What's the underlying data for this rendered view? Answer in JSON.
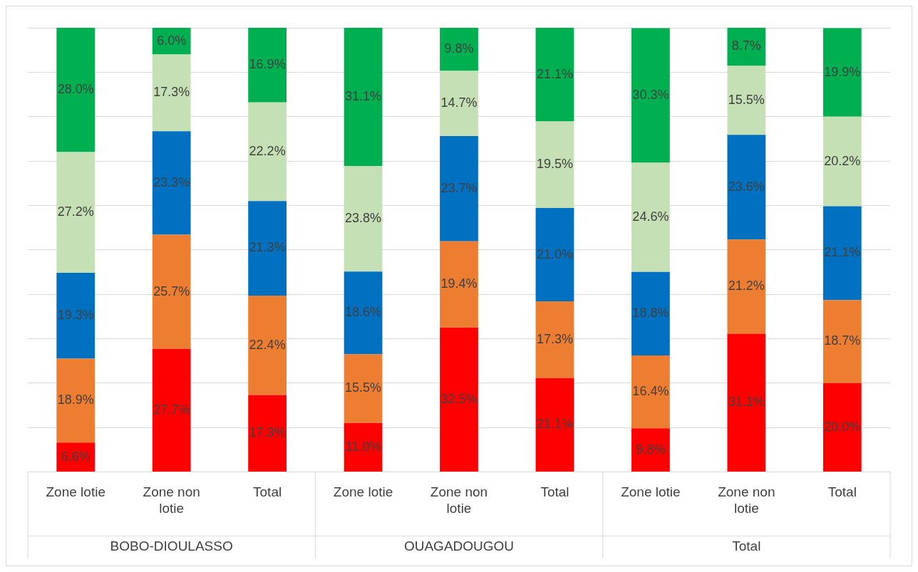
{
  "chart_data": {
    "type": "bar",
    "stacked": true,
    "categories": [
      "Zone lotie",
      "Zone non lotie",
      "Total",
      "Zone lotie",
      "Zone non lotie",
      "Total",
      "Zone lotie",
      "Zone non lotie",
      "Total"
    ],
    "annotations": [
      "BOBO-DIOULASSO",
      "OUAGADOUGOU",
      "Total"
    ],
    "series": [
      {
        "color": "#ff0000",
        "values": [
          6.6,
          27.7,
          17.3,
          11.0,
          32.5,
          21.1,
          9.8,
          31.1,
          20.0
        ],
        "value_labels": [
          "6.6%",
          "27.7%",
          "17.3%",
          "11.0%",
          "32.5%",
          "21.1%",
          "9.8%",
          "31.1%",
          "20.0%"
        ]
      },
      {
        "color": "#ed7d31",
        "values": [
          18.9,
          25.7,
          22.4,
          15.5,
          19.4,
          17.3,
          16.4,
          21.2,
          18.7
        ],
        "value_labels": [
          "18.9%",
          "25.7%",
          "22.4%",
          "15.5%",
          "19.4%",
          "17.3%",
          "16.4%",
          "21.2%",
          "18.7%"
        ]
      },
      {
        "color": "#0070c0",
        "values": [
          19.3,
          23.3,
          21.3,
          18.6,
          23.7,
          21.0,
          18.8,
          23.6,
          21.1
        ],
        "value_labels": [
          "19.3%",
          "23.3%",
          "21.3%",
          "18.6%",
          "23.7%",
          "21.0%",
          "18.8%",
          "23.6%",
          "21.1%"
        ]
      },
      {
        "color": "#c5e0b4",
        "values": [
          27.2,
          17.3,
          22.2,
          23.8,
          14.7,
          19.5,
          24.6,
          15.5,
          20.2
        ],
        "value_labels": [
          "27.2%",
          "17.3%",
          "22.2%",
          "23.8%",
          "14.7%",
          "19.5%",
          "24.6%",
          "15.5%",
          "20.2%"
        ]
      },
      {
        "color": "#00b050",
        "values": [
          28.0,
          6.0,
          16.9,
          31.1,
          9.8,
          21.1,
          30.3,
          8.7,
          19.9
        ],
        "value_labels": [
          "28.0%",
          "6.0%",
          "16.9%",
          "31.1%",
          "9.8%",
          "21.1%",
          "30.3%",
          "8.7%",
          "19.9%"
        ]
      }
    ],
    "ylim": [
      0,
      100
    ],
    "yticks": [
      {
        "value": 0,
        "label": null
      },
      {
        "value": 10,
        "label": null
      },
      {
        "value": 20,
        "label": null
      },
      {
        "value": 30,
        "label": null
      },
      {
        "value": 40,
        "label": null
      },
      {
        "value": 50,
        "label": null
      },
      {
        "value": 60,
        "label": null
      },
      {
        "value": 70,
        "label": null
      },
      {
        "value": 80,
        "label": null
      },
      {
        "value": 90,
        "label": null
      },
      {
        "value": 100,
        "label": null
      }
    ],
    "tick_labels": "x",
    "grid": "y",
    "legend": false
  }
}
